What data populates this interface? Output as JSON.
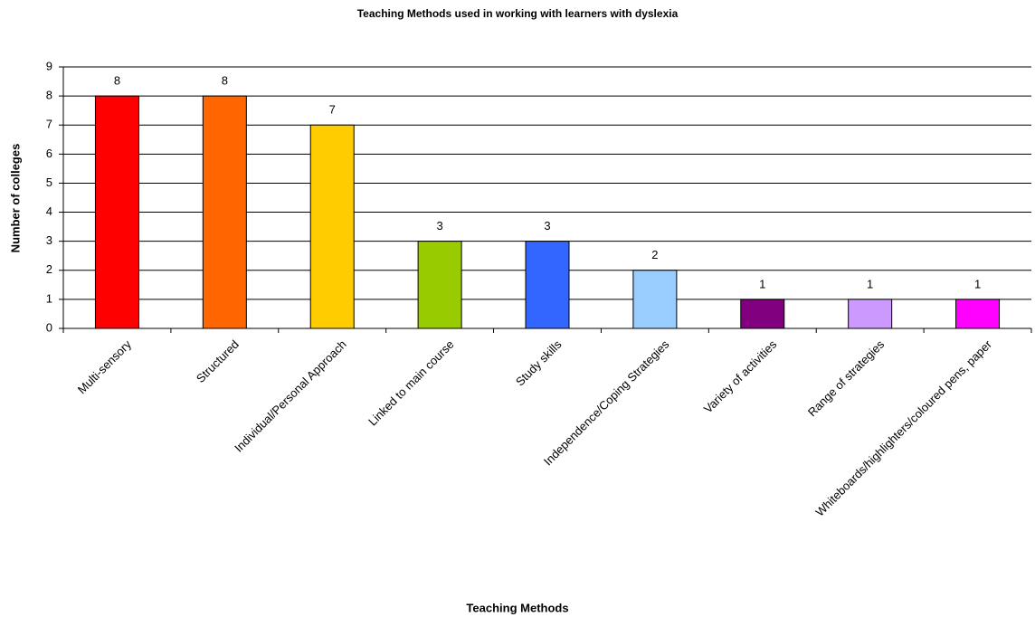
{
  "chart_data": {
    "type": "bar",
    "title": "Teaching Methods used in working with learners with dyslexia",
    "x_label": "Teaching Methods",
    "y_label": "Number of colleges",
    "categories": [
      "Multi-sensory",
      "Structured",
      "Individual/Personal Approach",
      "Linked to main course",
      "Study skills",
      "Independence/Coping Strategies",
      "Variety of activities",
      "Range of strategies",
      "Whiteboards/highlighters/coloured pens, paper"
    ],
    "values": [
      8,
      8,
      7,
      3,
      3,
      2,
      1,
      1,
      1
    ],
    "colors": [
      "#ff0000",
      "#ff6600",
      "#ffcc00",
      "#99cc00",
      "#3366ff",
      "#99ccff",
      "#800080",
      "#cc99ff",
      "#ff00ff"
    ],
    "ylim": [
      0,
      9
    ],
    "yticks": [
      0,
      1,
      2,
      3,
      4,
      5,
      6,
      7,
      8,
      9
    ],
    "grid": true
  }
}
